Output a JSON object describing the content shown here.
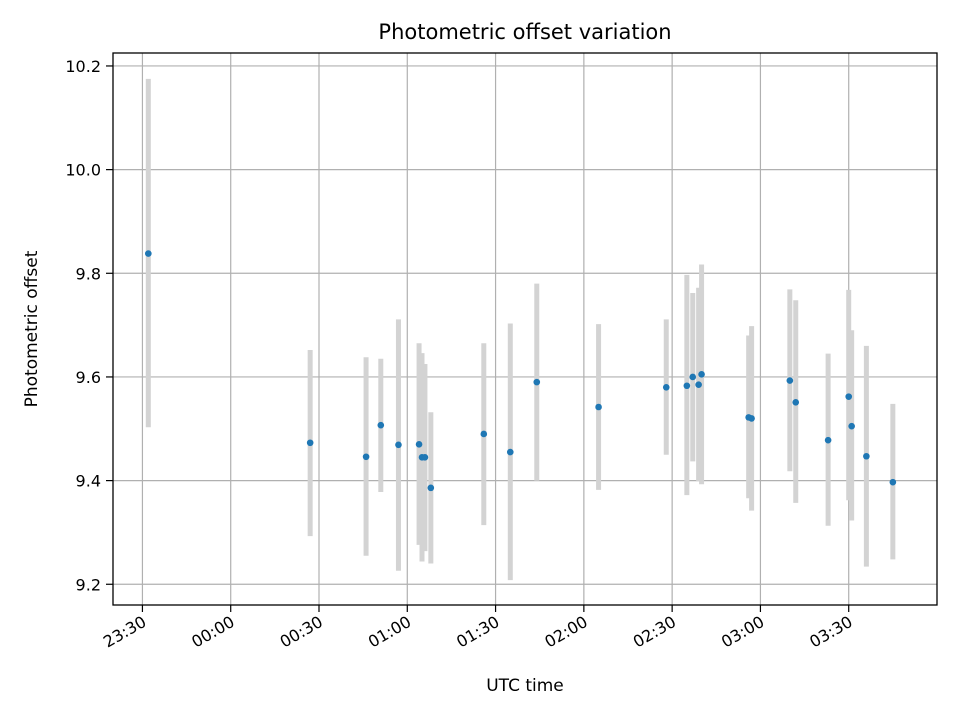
{
  "chart_data": {
    "type": "scatter",
    "title": "Photometric offset variation",
    "xlabel": "UTC time",
    "ylabel": "Photometric offset",
    "x_axis_type": "time",
    "xlim": [
      "23:20",
      "04:00"
    ],
    "ylim": [
      9.16,
      10.225
    ],
    "x_ticks": [
      "23:30",
      "00:00",
      "00:30",
      "01:00",
      "01:30",
      "02:00",
      "02:30",
      "03:00",
      "03:30"
    ],
    "y_ticks": [
      9.2,
      9.4,
      9.6,
      9.8,
      10.0,
      10.2
    ],
    "y_tick_labels": [
      "9.2",
      "9.4",
      "9.6",
      "9.8",
      "10.0",
      "10.2"
    ],
    "grid": true,
    "marker_color": "#1f77b4",
    "errorbar_color": "#d3d3d3",
    "series": [
      {
        "points": [
          {
            "x": "23:32",
            "y": 9.838,
            "ylow": 9.503,
            "yhigh": 10.175
          },
          {
            "x": "00:27",
            "y": 9.473,
            "ylow": 9.293,
            "yhigh": 9.652
          },
          {
            "x": "00:46",
            "y": 9.446,
            "ylow": 9.255,
            "yhigh": 9.638
          },
          {
            "x": "00:51",
            "y": 9.507,
            "ylow": 9.378,
            "yhigh": 9.635
          },
          {
            "x": "00:57",
            "y": 9.469,
            "ylow": 9.226,
            "yhigh": 9.711
          },
          {
            "x": "01:04",
            "y": 9.47,
            "ylow": 9.276,
            "yhigh": 9.665
          },
          {
            "x": "01:05",
            "y": 9.445,
            "ylow": 9.244,
            "yhigh": 9.646
          },
          {
            "x": "01:06",
            "y": 9.445,
            "ylow": 9.264,
            "yhigh": 9.625
          },
          {
            "x": "01:08",
            "y": 9.386,
            "ylow": 9.24,
            "yhigh": 9.532
          },
          {
            "x": "01:26",
            "y": 9.49,
            "ylow": 9.314,
            "yhigh": 9.665
          },
          {
            "x": "01:35",
            "y": 9.455,
            "ylow": 9.208,
            "yhigh": 9.703
          },
          {
            "x": "01:44",
            "y": 9.59,
            "ylow": 9.4,
            "yhigh": 9.78
          },
          {
            "x": "02:05",
            "y": 9.542,
            "ylow": 9.382,
            "yhigh": 9.702
          },
          {
            "x": "02:28",
            "y": 9.58,
            "ylow": 9.45,
            "yhigh": 9.711
          },
          {
            "x": "02:35",
            "y": 9.583,
            "ylow": 9.372,
            "yhigh": 9.797
          },
          {
            "x": "02:37",
            "y": 9.6,
            "ylow": 9.437,
            "yhigh": 9.762
          },
          {
            "x": "02:39",
            "y": 9.585,
            "ylow": 9.399,
            "yhigh": 9.772
          },
          {
            "x": "02:40",
            "y": 9.605,
            "ylow": 9.393,
            "yhigh": 9.817
          },
          {
            "x": "02:56",
            "y": 9.522,
            "ylow": 9.366,
            "yhigh": 9.68
          },
          {
            "x": "02:57",
            "y": 9.52,
            "ylow": 9.342,
            "yhigh": 9.698
          },
          {
            "x": "03:10",
            "y": 9.593,
            "ylow": 9.418,
            "yhigh": 9.769
          },
          {
            "x": "03:12",
            "y": 9.551,
            "ylow": 9.357,
            "yhigh": 9.748
          },
          {
            "x": "03:23",
            "y": 9.478,
            "ylow": 9.313,
            "yhigh": 9.645
          },
          {
            "x": "03:30",
            "y": 9.562,
            "ylow": 9.362,
            "yhigh": 9.768
          },
          {
            "x": "03:31",
            "y": 9.505,
            "ylow": 9.323,
            "yhigh": 9.69
          },
          {
            "x": "03:36",
            "y": 9.447,
            "ylow": 9.234,
            "yhigh": 9.66
          },
          {
            "x": "03:45",
            "y": 9.397,
            "ylow": 9.248,
            "yhigh": 9.548
          }
        ]
      }
    ]
  }
}
